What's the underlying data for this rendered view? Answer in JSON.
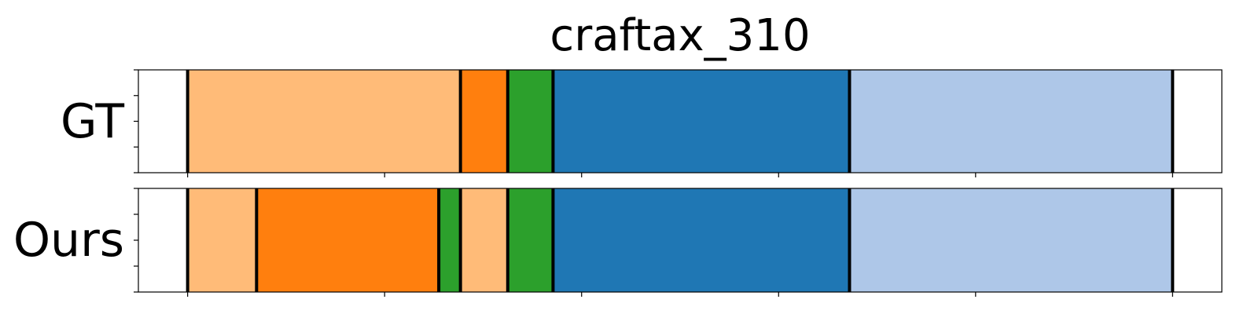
{
  "chart_data": {
    "type": "segmentation-timeline",
    "title": "craftax_310",
    "x_range": [
      0,
      1100
    ],
    "x_ticks": [
      50,
      250,
      450,
      650,
      850,
      1050
    ],
    "rows": [
      {
        "label": "GT",
        "segments": [
          {
            "start": 50,
            "end": 327,
            "color": "#ffbb78"
          },
          {
            "start": 327,
            "end": 375,
            "color": "#ff7f0e"
          },
          {
            "start": 375,
            "end": 421,
            "color": "#2ca02c"
          },
          {
            "start": 421,
            "end": 722,
            "color": "#1f77b4"
          },
          {
            "start": 722,
            "end": 1050,
            "color": "#aec7e8"
          }
        ]
      },
      {
        "label": "Ours",
        "segments": [
          {
            "start": 50,
            "end": 120,
            "color": "#ffbb78"
          },
          {
            "start": 120,
            "end": 305,
            "color": "#ff7f0e"
          },
          {
            "start": 305,
            "end": 327,
            "color": "#2ca02c"
          },
          {
            "start": 327,
            "end": 375,
            "color": "#ffbb78"
          },
          {
            "start": 375,
            "end": 421,
            "color": "#2ca02c"
          },
          {
            "start": 421,
            "end": 722,
            "color": "#1f77b4"
          },
          {
            "start": 722,
            "end": 1050,
            "color": "#aec7e8"
          }
        ]
      }
    ]
  }
}
